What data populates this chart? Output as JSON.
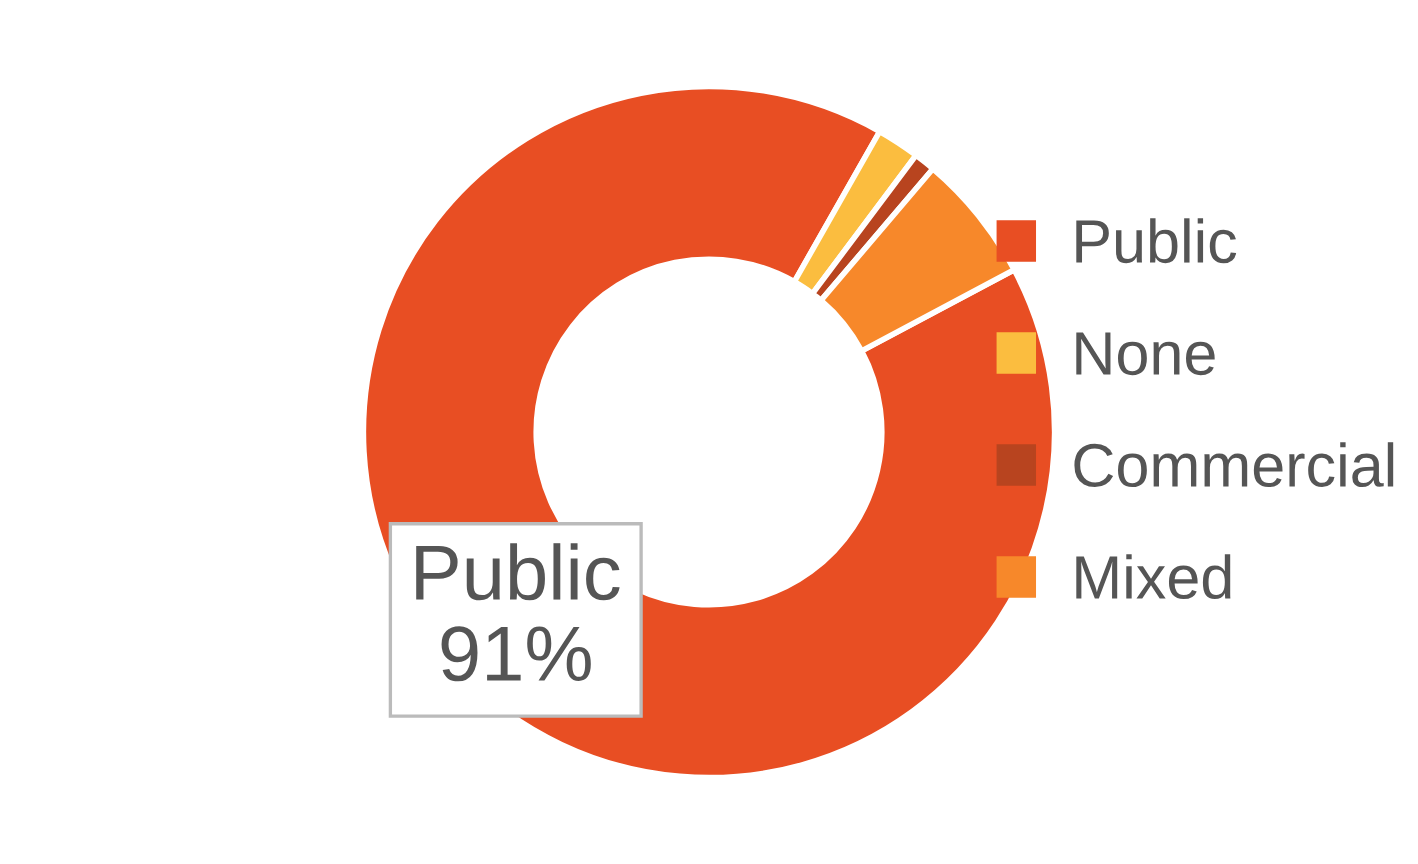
{
  "chart_data": {
    "type": "donut",
    "categories": [
      "Public",
      "None",
      "Commercial",
      "Mixed"
    ],
    "values": [
      91,
      2,
      1,
      6
    ],
    "colors": [
      "#e84e23",
      "#fbbd3f",
      "#b8441f",
      "#f7882a"
    ],
    "value_labels": [
      "91%",
      null,
      null,
      null
    ],
    "legend": "right"
  }
}
